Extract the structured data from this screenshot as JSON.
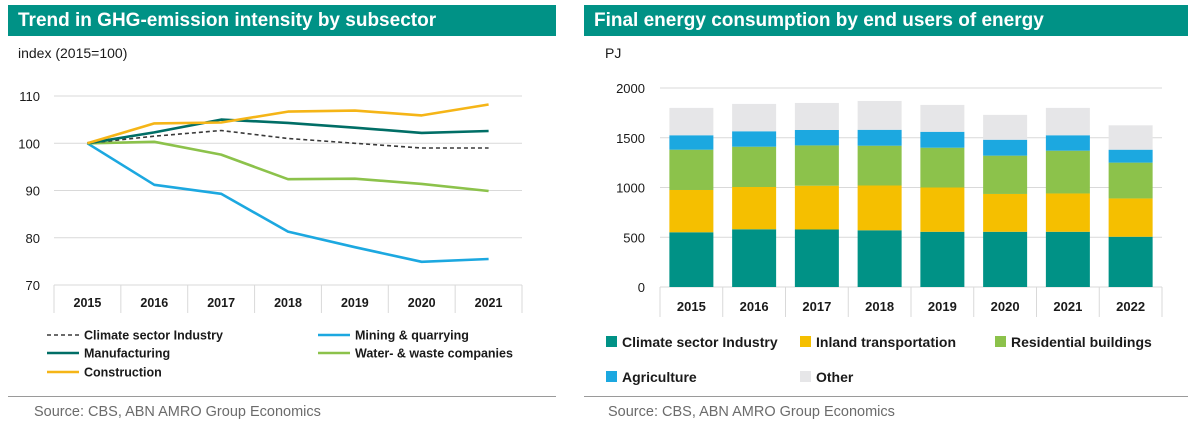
{
  "left_panel": {
    "title": "Trend in GHG-emission intensity by subsector",
    "unit": "index (2015=100)",
    "source": "Source: CBS, ABN AMRO Group Economics"
  },
  "right_panel": {
    "title": "Final energy consumption by end users of energy",
    "unit": "PJ",
    "source": "Source: CBS, ABN AMRO Group Economics"
  },
  "chart_data": [
    {
      "type": "line",
      "title": "Trend in GHG-emission intensity by subsector",
      "ylabel": "index (2015=100)",
      "xlabel": "",
      "x": [
        "2015",
        "2016",
        "2017",
        "2018",
        "2019",
        "2020",
        "2021"
      ],
      "ylim": [
        70,
        110
      ],
      "yticks": [
        70,
        80,
        90,
        100,
        110
      ],
      "grid": true,
      "legend_position": "bottom",
      "series": [
        {
          "name": "Climate sector Industry",
          "color": "#3a3a3a",
          "dashed": true,
          "values": [
            100,
            101.5,
            102.7,
            101,
            100,
            99,
            99
          ]
        },
        {
          "name": "Mining & quarrying",
          "color": "#1ca8e0",
          "dashed": false,
          "values": [
            100,
            91.2,
            89.3,
            81.3,
            78,
            74.9,
            75.5
          ]
        },
        {
          "name": "Manufacturing",
          "color": "#006e66",
          "dashed": false,
          "values": [
            100,
            102.3,
            105,
            104.3,
            103.3,
            102.2,
            102.6
          ]
        },
        {
          "name": "Water- & waste companies",
          "color": "#8cc24b",
          "dashed": false,
          "values": [
            100,
            100.3,
            97.6,
            92.4,
            92.5,
            91.4,
            89.9
          ]
        },
        {
          "name": "Construction",
          "color": "#f5b517",
          "dashed": false,
          "values": [
            100,
            104.2,
            104.4,
            106.7,
            106.9,
            105.9,
            108.2
          ]
        }
      ]
    },
    {
      "type": "bar",
      "stacked": true,
      "title": "Final energy consumption by end users of energy",
      "ylabel": "PJ",
      "xlabel": "",
      "categories": [
        "2015",
        "2016",
        "2017",
        "2018",
        "2019",
        "2020",
        "2021",
        "2022"
      ],
      "ylim": [
        0,
        2000
      ],
      "yticks": [
        0,
        500,
        1000,
        1500,
        2000
      ],
      "grid": true,
      "legend_position": "bottom",
      "series": [
        {
          "name": "Climate sector Industry",
          "color": "#009286",
          "values": [
            550,
            580,
            578,
            570,
            555,
            555,
            555,
            505
          ]
        },
        {
          "name": "Inland transportation",
          "color": "#f5bf00",
          "values": [
            425,
            425,
            440,
            450,
            445,
            380,
            385,
            385
          ]
        },
        {
          "name": "Residential buildings",
          "color": "#8cc24b",
          "values": [
            405,
            405,
            405,
            400,
            400,
            385,
            430,
            360
          ]
        },
        {
          "name": "Agriculture",
          "color": "#1ca8e0",
          "values": [
            145,
            155,
            155,
            160,
            160,
            160,
            155,
            130
          ]
        },
        {
          "name": "Other",
          "color": "#e6e6e8",
          "values": [
            275,
            275,
            272,
            290,
            270,
            250,
            275,
            245
          ]
        }
      ]
    }
  ]
}
